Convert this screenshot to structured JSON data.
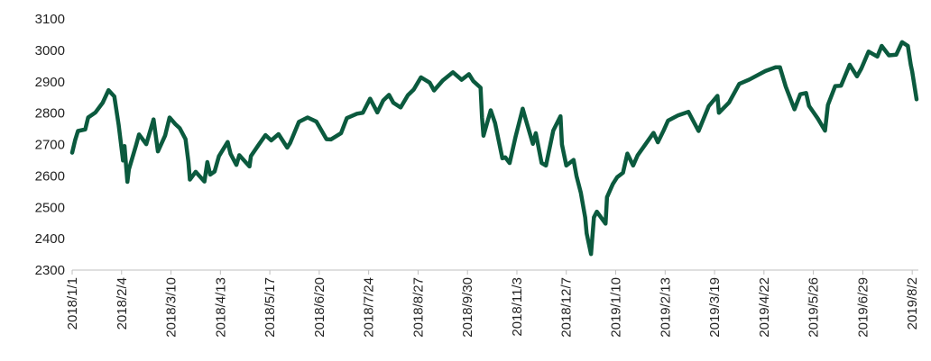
{
  "chart_data": {
    "type": "line",
    "x": [
      "2018/1/1",
      "2018/1/3",
      "2018/1/5",
      "2018/1/10",
      "2018/1/12",
      "2018/1/17",
      "2018/1/22",
      "2018/1/26",
      "2018/1/30",
      "2018/2/2",
      "2018/2/5",
      "2018/2/6",
      "2018/2/8",
      "2018/2/9",
      "2018/2/14",
      "2018/2/16",
      "2018/2/21",
      "2018/2/26",
      "2018/3/1",
      "2018/3/6",
      "2018/3/9",
      "2018/3/13",
      "2018/3/16",
      "2018/3/20",
      "2018/3/22",
      "2018/3/23",
      "2018/3/27",
      "2018/4/2",
      "2018/4/4",
      "2018/4/6",
      "2018/4/9",
      "2018/4/12",
      "2018/4/18",
      "2018/4/20",
      "2018/4/24",
      "2018/4/26",
      "2018/5/3",
      "2018/5/4",
      "2018/5/9",
      "2018/5/14",
      "2018/5/18",
      "2018/5/23",
      "2018/5/29",
      "2018/5/31",
      "2018/6/6",
      "2018/6/12",
      "2018/6/18",
      "2018/6/21",
      "2018/6/25",
      "2018/6/28",
      "2018/7/5",
      "2018/7/9",
      "2018/7/16",
      "2018/7/20",
      "2018/7/25",
      "2018/7/30",
      "2018/8/3",
      "2018/8/7",
      "2018/8/10",
      "2018/8/15",
      "2018/8/20",
      "2018/8/24",
      "2018/8/29",
      "2018/9/4",
      "2018/9/7",
      "2018/9/13",
      "2018/9/20",
      "2018/9/26",
      "2018/10/1",
      "2018/10/4",
      "2018/10/9",
      "2018/10/10",
      "2018/10/11",
      "2018/10/16",
      "2018/10/19",
      "2018/10/24",
      "2018/10/26",
      "2018/10/29",
      "2018/11/2",
      "2018/11/7",
      "2018/11/9",
      "2018/11/14",
      "2018/11/16",
      "2018/11/20",
      "2018/11/23",
      "2018/11/28",
      "2018/12/3",
      "2018/12/4",
      "2018/12/7",
      "2018/12/12",
      "2018/12/14",
      "2018/12/17",
      "2018/12/20",
      "2018/12/21",
      "2018/12/24",
      "2018/12/26",
      "2018/12/28",
      "2019/1/3",
      "2019/1/4",
      "2019/1/8",
      "2019/1/11",
      "2019/1/15",
      "2019/1/18",
      "2019/1/22",
      "2019/1/25",
      "2019/1/31",
      "2019/2/5",
      "2019/2/8",
      "2019/2/12",
      "2019/2/15",
      "2019/2/22",
      "2019/3/1",
      "2019/3/8",
      "2019/3/15",
      "2019/3/21",
      "2019/3/22",
      "2019/3/29",
      "2019/4/5",
      "2019/4/12",
      "2019/4/23",
      "2019/4/30",
      "2019/5/3",
      "2019/5/7",
      "2019/5/13",
      "2019/5/17",
      "2019/5/21",
      "2019/5/23",
      "2019/5/29",
      "2019/6/3",
      "2019/6/5",
      "2019/6/10",
      "2019/6/14",
      "2019/6/20",
      "2019/6/25",
      "2019/6/28",
      "2019/7/3",
      "2019/7/9",
      "2019/7/12",
      "2019/7/17",
      "2019/7/22",
      "2019/7/26",
      "2019/7/30",
      "2019/8/1",
      "2019/8/2",
      "2019/8/5"
    ],
    "series": [
      {
        "color": "#0b5a3e",
        "values": [
          2674,
          2713,
          2743,
          2748,
          2786,
          2802,
          2833,
          2873,
          2853,
          2762,
          2649,
          2695,
          2581,
          2620,
          2698,
          2732,
          2701,
          2780,
          2678,
          2729,
          2786,
          2765,
          2752,
          2717,
          2644,
          2588,
          2613,
          2582,
          2644,
          2604,
          2614,
          2663,
          2708,
          2670,
          2635,
          2666,
          2630,
          2663,
          2697,
          2730,
          2713,
          2733,
          2690,
          2705,
          2772,
          2786,
          2773,
          2749,
          2717,
          2716,
          2736,
          2784,
          2798,
          2801,
          2846,
          2802,
          2840,
          2858,
          2833,
          2818,
          2857,
          2875,
          2914,
          2897,
          2872,
          2904,
          2930,
          2906,
          2924,
          2902,
          2881,
          2786,
          2728,
          2809,
          2768,
          2656,
          2659,
          2641,
          2723,
          2814,
          2781,
          2702,
          2736,
          2641,
          2633,
          2744,
          2790,
          2700,
          2633,
          2651,
          2600,
          2546,
          2467,
          2417,
          2351,
          2468,
          2486,
          2448,
          2532,
          2574,
          2596,
          2610,
          2671,
          2633,
          2665,
          2704,
          2737,
          2707,
          2745,
          2776,
          2793,
          2804,
          2743,
          2822,
          2855,
          2801,
          2834,
          2893,
          2907,
          2934,
          2946,
          2946,
          2884,
          2812,
          2860,
          2864,
          2823,
          2783,
          2744,
          2826,
          2886,
          2887,
          2954,
          2917,
          2942,
          2996,
          2980,
          3014,
          2984,
          2986,
          3026,
          3014,
          2954,
          2932,
          2844
        ]
      }
    ],
    "xlim": [
      "2018/1/1",
      "2019/8/5"
    ],
    "xticks": [
      "2018/1/1",
      "2018/2/4",
      "2018/3/10",
      "2018/4/13",
      "2018/5/17",
      "2018/6/20",
      "2018/7/24",
      "2018/8/27",
      "2018/9/30",
      "2018/11/3",
      "2018/12/7",
      "2019/1/10",
      "2019/2/13",
      "2019/3/19",
      "2019/4/22",
      "2019/5/26",
      "2019/6/29",
      "2019/8/2"
    ],
    "ylim": [
      2300,
      3100
    ],
    "yticks": [
      2300,
      2400,
      2500,
      2600,
      2700,
      2800,
      2900,
      3000,
      3100
    ],
    "grid": false
  }
}
